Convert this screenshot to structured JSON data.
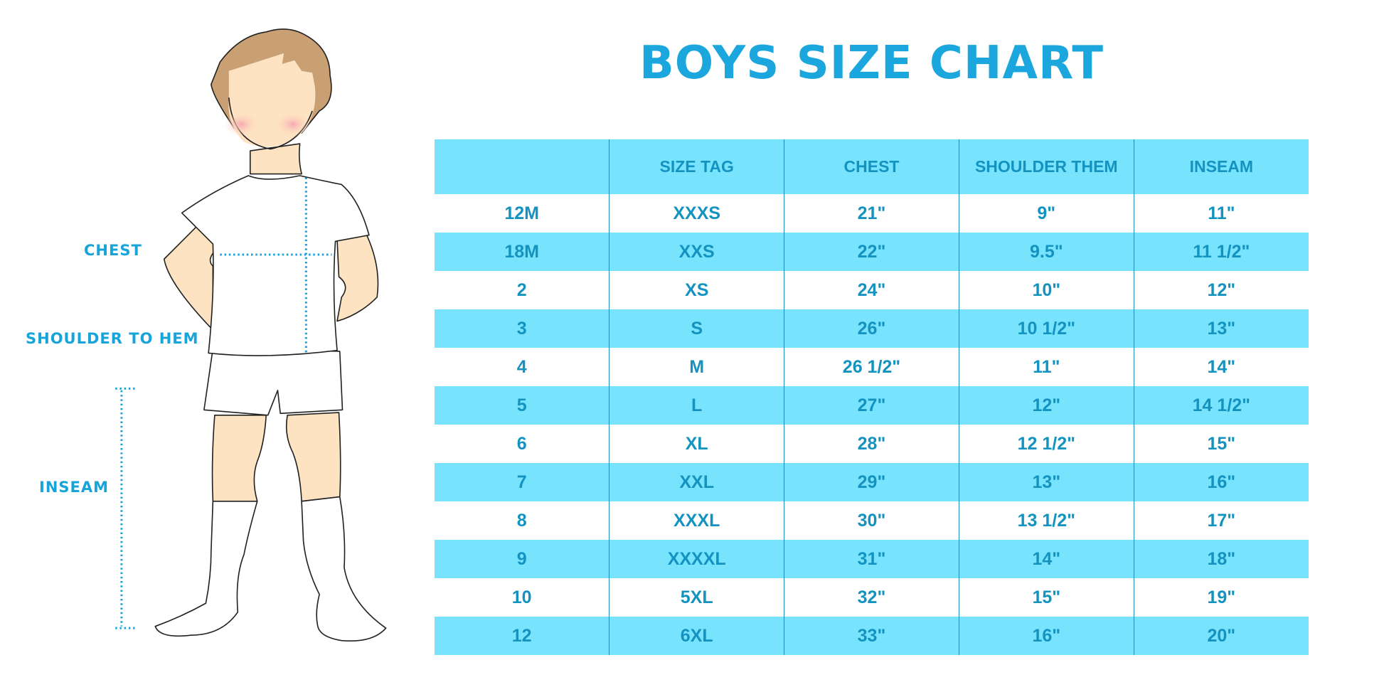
{
  "title": "BOYS SIZE CHART",
  "figure": {
    "labels": {
      "chest": "CHEST",
      "shoulder_to_hem": "SHOULDER TO HEM",
      "inseam": "INSEAM"
    }
  },
  "colors": {
    "accent": "#1ba7dd",
    "row_highlight": "#77e3fc",
    "text": "#1493c0"
  },
  "table": {
    "headers": [
      "",
      "SIZE TAG",
      "CHEST",
      "SHOULDER THEM",
      "INSEAM"
    ],
    "rows": [
      [
        "12M",
        "XXXS",
        "21\"",
        "9\"",
        "11\""
      ],
      [
        "18M",
        "XXS",
        "22\"",
        "9.5\"",
        "11 1/2\""
      ],
      [
        "2",
        "XS",
        "24\"",
        "10\"",
        "12\""
      ],
      [
        "3",
        "S",
        "26\"",
        "10 1/2\"",
        "13\""
      ],
      [
        "4",
        "M",
        "26 1/2\"",
        "11\"",
        "14\""
      ],
      [
        "5",
        "L",
        "27\"",
        "12\"",
        "14 1/2\""
      ],
      [
        "6",
        "XL",
        "28\"",
        "12 1/2\"",
        "15\""
      ],
      [
        "7",
        "XXL",
        "29\"",
        "13\"",
        "16\""
      ],
      [
        "8",
        "XXXL",
        "30\"",
        "13 1/2\"",
        "17\""
      ],
      [
        "9",
        "XXXXL",
        "31\"",
        "14\"",
        "18\""
      ],
      [
        "10",
        "5XL",
        "32\"",
        "15\"",
        "19\""
      ],
      [
        "12",
        "6XL",
        "33\"",
        "16\"",
        "20\""
      ]
    ]
  }
}
